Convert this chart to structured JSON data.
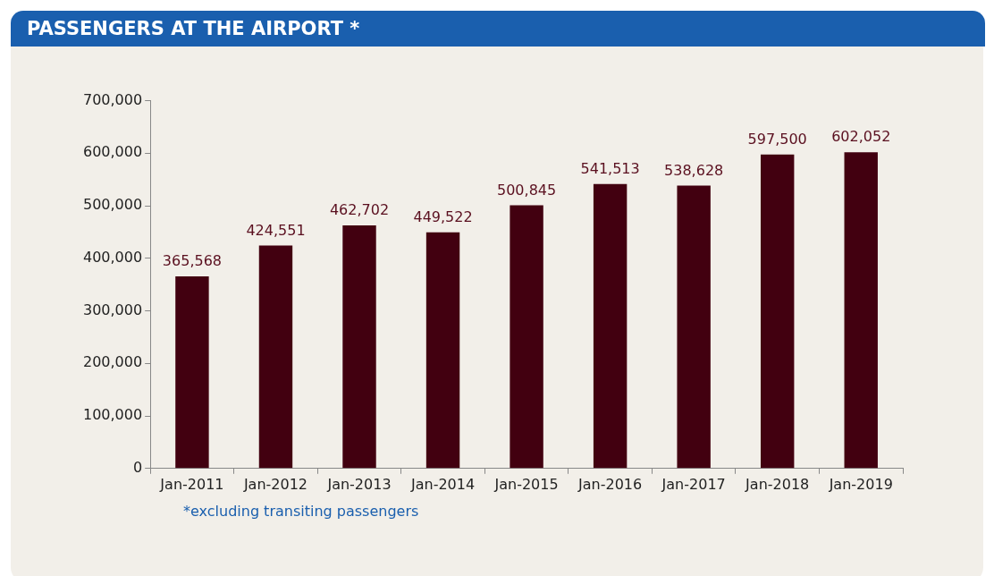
{
  "chart_data": {
    "type": "bar",
    "title": "PASSENGERS AT THE AIRPORT *",
    "categories": [
      "Jan-2011",
      "Jan-2012",
      "Jan-2013",
      "Jan-2014",
      "Jan-2015",
      "Jan-2016",
      "Jan-2017",
      "Jan-2018",
      "Jan-2019"
    ],
    "values": [
      365568,
      424551,
      462702,
      449522,
      500845,
      541513,
      538628,
      597500,
      602052
    ],
    "value_labels": [
      "365,568",
      "424,551",
      "462,702",
      "449,522",
      "500,845",
      "541,513",
      "538,628",
      "597,500",
      "602,052"
    ],
    "color": "#420010",
    "ylim": [
      0,
      700000
    ],
    "yticks": [
      0,
      {
        "value": 100000,
        "label": "100,000"
      },
      {
        "value": 200000,
        "label": "200,000"
      },
      {
        "value": 300000,
        "label": "300,000"
      },
      {
        "value": 400000,
        "label": "400,000"
      },
      {
        "value": 500000,
        "label": "500,000"
      },
      {
        "value": 600000,
        "label": "600,000"
      },
      {
        "value": 700000,
        "label": "700,000"
      }
    ],
    "grid": false,
    "annotations": [
      "*excluding transiting passengers"
    ]
  }
}
